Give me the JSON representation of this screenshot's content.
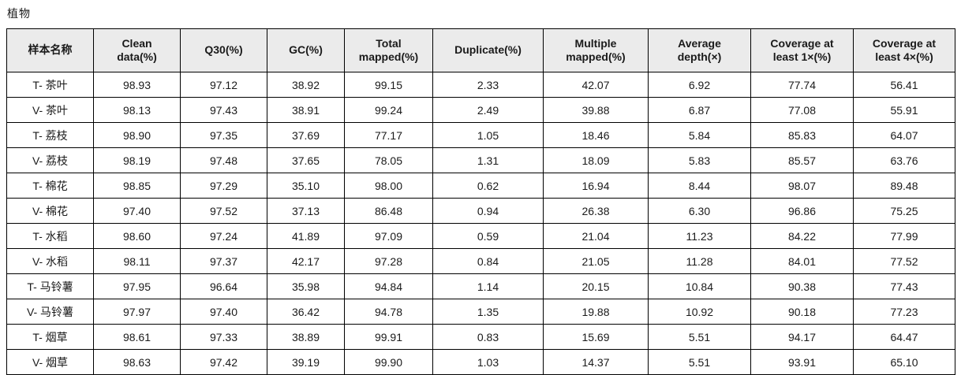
{
  "page": {
    "title": "植物"
  },
  "table": {
    "columns": [
      {
        "label": "样本名称"
      },
      {
        "label": "Clean data(%)"
      },
      {
        "label": "Q30(%)"
      },
      {
        "label": "GC(%)"
      },
      {
        "label": "Total mapped(%)"
      },
      {
        "label": "Duplicate(%)"
      },
      {
        "label": "Multiple mapped(%)"
      },
      {
        "label": "Average depth(×)"
      },
      {
        "label": "Coverage at least 1×(%)"
      },
      {
        "label": "Coverage at least 4×(%)"
      }
    ],
    "rows": [
      [
        "T- 茶叶",
        "98.93",
        "97.12",
        "38.92",
        "99.15",
        "2.33",
        "42.07",
        "6.92",
        "77.74",
        "56.41"
      ],
      [
        "V- 茶叶",
        "98.13",
        "97.43",
        "38.91",
        "99.24",
        "2.49",
        "39.88",
        "6.87",
        "77.08",
        "55.91"
      ],
      [
        "T- 荔枝",
        "98.90",
        "97.35",
        "37.69",
        "77.17",
        "1.05",
        "18.46",
        "5.84",
        "85.83",
        "64.07"
      ],
      [
        "V- 荔枝",
        "98.19",
        "97.48",
        "37.65",
        "78.05",
        "1.31",
        "18.09",
        "5.83",
        "85.57",
        "63.76"
      ],
      [
        "T- 棉花",
        "98.85",
        "97.29",
        "35.10",
        "98.00",
        "0.62",
        "16.94",
        "8.44",
        "98.07",
        "89.48"
      ],
      [
        "V- 棉花",
        "97.40",
        "97.52",
        "37.13",
        "86.48",
        "0.94",
        "26.38",
        "6.30",
        "96.86",
        "75.25"
      ],
      [
        "T- 水稻",
        "98.60",
        "97.24",
        "41.89",
        "97.09",
        "0.59",
        "21.04",
        "11.23",
        "84.22",
        "77.99"
      ],
      [
        "V- 水稻",
        "98.11",
        "97.37",
        "42.17",
        "97.28",
        "0.84",
        "21.05",
        "11.28",
        "84.01",
        "77.52"
      ],
      [
        "T- 马铃薯",
        "97.95",
        "96.64",
        "35.98",
        "94.84",
        "1.14",
        "20.15",
        "10.84",
        "90.38",
        "77.43"
      ],
      [
        "V- 马铃薯",
        "97.97",
        "97.40",
        "36.42",
        "94.78",
        "1.35",
        "19.88",
        "10.92",
        "90.18",
        "77.23"
      ],
      [
        "T- 烟草",
        "98.61",
        "97.33",
        "38.89",
        "99.91",
        "0.83",
        "15.69",
        "5.51",
        "94.17",
        "64.47"
      ],
      [
        "V- 烟草",
        "98.63",
        "97.42",
        "39.19",
        "99.90",
        "1.03",
        "14.37",
        "5.51",
        "93.91",
        "65.10"
      ]
    ]
  },
  "colors": {
    "header_bg": "#ebebeb",
    "border": "#000000",
    "text": "#1a1a1a",
    "background": "#ffffff"
  }
}
